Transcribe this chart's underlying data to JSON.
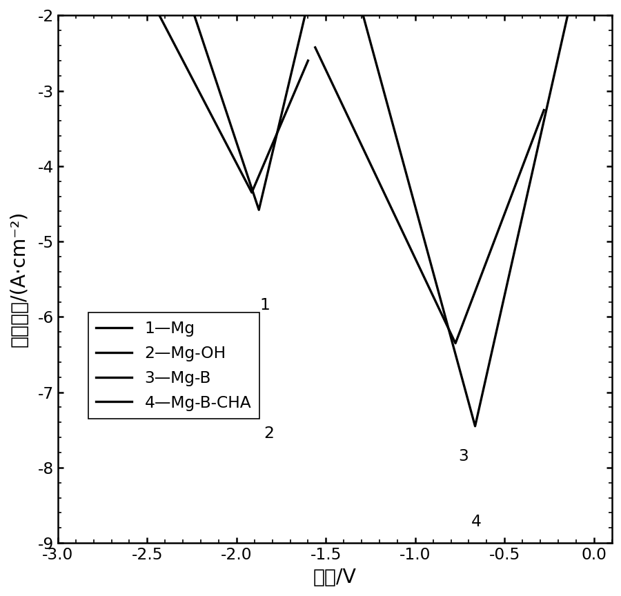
{
  "xlabel": "电位/V",
  "ylabel": "电流密度/(A·cm⁻²)",
  "xlim": [
    -3.0,
    0.1
  ],
  "ylim": [
    -9.0,
    -2.0
  ],
  "xticks": [
    -3.0,
    -2.5,
    -2.0,
    -1.5,
    -1.0,
    -0.5,
    0.0
  ],
  "yticks": [
    -9,
    -8,
    -7,
    -6,
    -5,
    -4,
    -3,
    -2
  ],
  "background_color": "#ffffff",
  "line_color": "#000000",
  "linewidth": 2.0,
  "number_labels": [
    "1",
    "2",
    "3",
    "4"
  ],
  "number_positions": [
    [
      -1.84,
      -5.85
    ],
    [
      -1.82,
      -7.55
    ],
    [
      -0.73,
      -7.85
    ],
    [
      -0.66,
      -8.72
    ]
  ],
  "legend_entries": [
    "1—Mg",
    "2—Mg-OH",
    "3—Mg-B",
    "4—Mg-B-CHA"
  ],
  "curves": [
    {
      "name": "Mg",
      "ecorr": -1.915,
      "icorr": -4.35,
      "ba": 0.18,
      "bc": 0.22,
      "cat_xlim": -2.65,
      "ano_xlim": -1.6,
      "cat_depth": 8.8,
      "ano_depth": 8.8
    },
    {
      "name": "Mg_OH",
      "ecorr": -1.875,
      "icorr": -4.58,
      "ba": 0.1,
      "bc": 0.14,
      "cat_xlim": -2.46,
      "ano_xlim": -1.555,
      "cat_depth": 8.8,
      "ano_depth": 8.8
    },
    {
      "name": "Mg_B",
      "ecorr": -0.775,
      "icorr": -6.35,
      "ba": 0.16,
      "bc": 0.2,
      "cat_xlim": -1.56,
      "ano_xlim": -0.28,
      "cat_depth": 8.8,
      "ano_depth": 8.8
    },
    {
      "name": "Mg_B_CHA",
      "ecorr": -0.665,
      "icorr": -7.45,
      "ba": 0.095,
      "bc": 0.115,
      "cat_xlim": -1.46,
      "ano_xlim": 0.1,
      "cat_depth": 8.8,
      "ano_depth": 8.8
    }
  ]
}
